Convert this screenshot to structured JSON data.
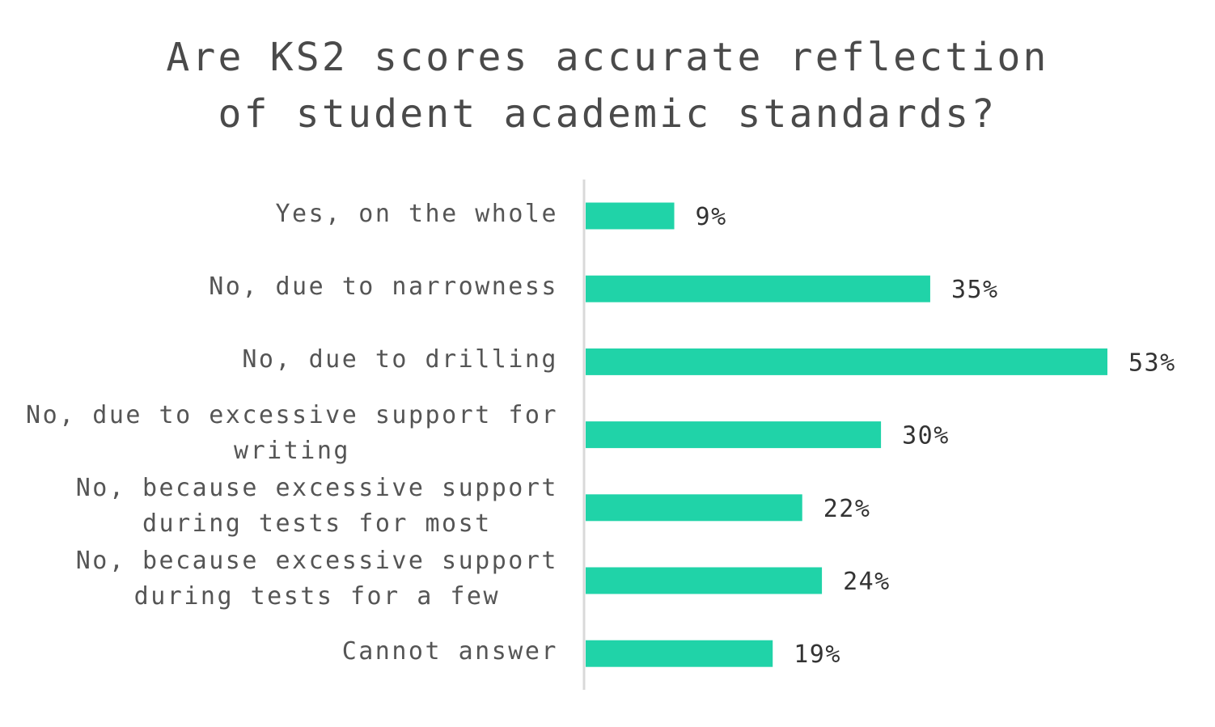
{
  "chart_data": {
    "type": "bar",
    "orientation": "horizontal",
    "title": "Are KS2 scores accurate reflection\nof student academic standards?",
    "categories": [
      "Yes, on the whole",
      "No, due to narrowness",
      "No, due to drilling",
      "No, due to excessive support for\nwriting",
      "No, because excessive support\nduring tests for most",
      "No, because excessive support\nduring tests for a few",
      "Cannot answer"
    ],
    "values": [
      9,
      35,
      53,
      30,
      22,
      24,
      19
    ],
    "value_labels": [
      "9%",
      "35%",
      "53%",
      "30%",
      "22%",
      "24%",
      "19%"
    ],
    "unit": "%",
    "xlim": [
      0,
      53
    ],
    "grid": false,
    "legend": "none",
    "colors": {
      "bar": "#20D3A8",
      "axis": "#D9D9D9",
      "text": "#555555"
    }
  }
}
